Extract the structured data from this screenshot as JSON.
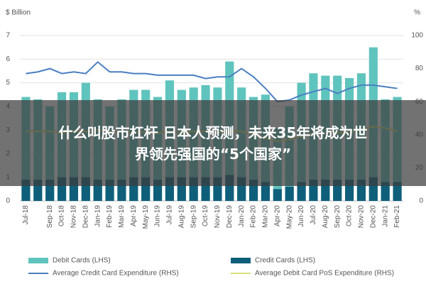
{
  "chart_data": {
    "type": "bar-line",
    "y_axis_label": "$ Billion",
    "y2_axis_label": "%",
    "categories": [
      "Jul-18",
      null,
      "Sep-18",
      "Oct-18",
      "Nov-18",
      "Dec-18",
      "Jan-19",
      "Feb-19",
      "Mar-19",
      "Apr-19",
      "May-19",
      "Jun-19",
      "Jul-19",
      "Aug-19",
      "Sep-19",
      "Oct-19",
      "Nov-19",
      "Dec-19",
      "Jan-20",
      "Feb-20",
      "Mar-20",
      "Apr-20",
      "May-20",
      "Jun-20",
      "Jul-20",
      "Aug-20",
      "Sep-20",
      "Oct-20",
      "Nov-20",
      "Dec-20",
      "Jan-21",
      "Feb-21"
    ],
    "series": [
      {
        "name": "Debit Cards (LHS)",
        "color": "#5fc4bd",
        "kind": "bar",
        "values": [
          4.4,
          4.3,
          4.0,
          4.6,
          4.6,
          5.0,
          4.3,
          4.0,
          4.3,
          4.7,
          4.7,
          4.4,
          5.1,
          4.7,
          4.8,
          4.9,
          4.8,
          5.9,
          4.8,
          4.4,
          4.5,
          3.1,
          4.0,
          5.0,
          5.4,
          5.3,
          5.3,
          5.2,
          5.4,
          6.5,
          4.3,
          4.4
        ]
      },
      {
        "name": "Credit Cards (LHS)",
        "color": "#0f5f7a",
        "kind": "bar",
        "values": [
          0.9,
          0.9,
          0.9,
          1.0,
          1.0,
          1.0,
          0.9,
          0.9,
          0.9,
          1.0,
          1.0,
          0.9,
          1.0,
          1.0,
          1.0,
          1.0,
          1.0,
          1.1,
          1.0,
          0.9,
          0.8,
          0.5,
          0.6,
          0.8,
          0.9,
          0.9,
          0.9,
          0.9,
          0.9,
          1.0,
          0.8,
          0.8
        ]
      },
      {
        "name": "Average Credit Card Expenditure (RHS)",
        "color": "#4a7fc1",
        "kind": "line",
        "axis": "y2",
        "values": [
          77,
          78,
          80,
          77,
          78,
          77,
          84,
          78,
          78,
          77,
          77,
          76,
          76,
          76,
          76,
          74,
          75,
          75,
          80,
          75,
          68,
          60,
          61,
          64,
          66,
          68,
          65,
          68,
          70,
          70,
          69,
          68
        ]
      },
      {
        "name": "Average Debit Card PoS Expenditure (RHS)",
        "color": "#d9e07a",
        "kind": "line",
        "axis": "y2",
        "values": [
          42,
          42,
          42,
          41,
          42,
          42,
          43,
          42,
          42,
          41,
          42,
          41,
          42,
          41,
          42,
          42,
          41,
          42,
          42,
          40,
          38,
          36,
          37,
          39,
          41,
          41,
          41,
          42,
          43,
          45,
          44,
          42
        ]
      }
    ],
    "ylim": [
      0,
      7
    ],
    "yticks": [
      0,
      1,
      2,
      3,
      4,
      5,
      6,
      7
    ],
    "y2lim": [
      0,
      100
    ],
    "y2ticks": [
      0,
      20,
      40,
      60,
      80,
      100
    ],
    "grid": true
  },
  "overlay": {
    "lines": [
      "什么叫股市杠杆 日本人预测，未来35年将成为世",
      "界领先强国的“5个国家”"
    ]
  }
}
